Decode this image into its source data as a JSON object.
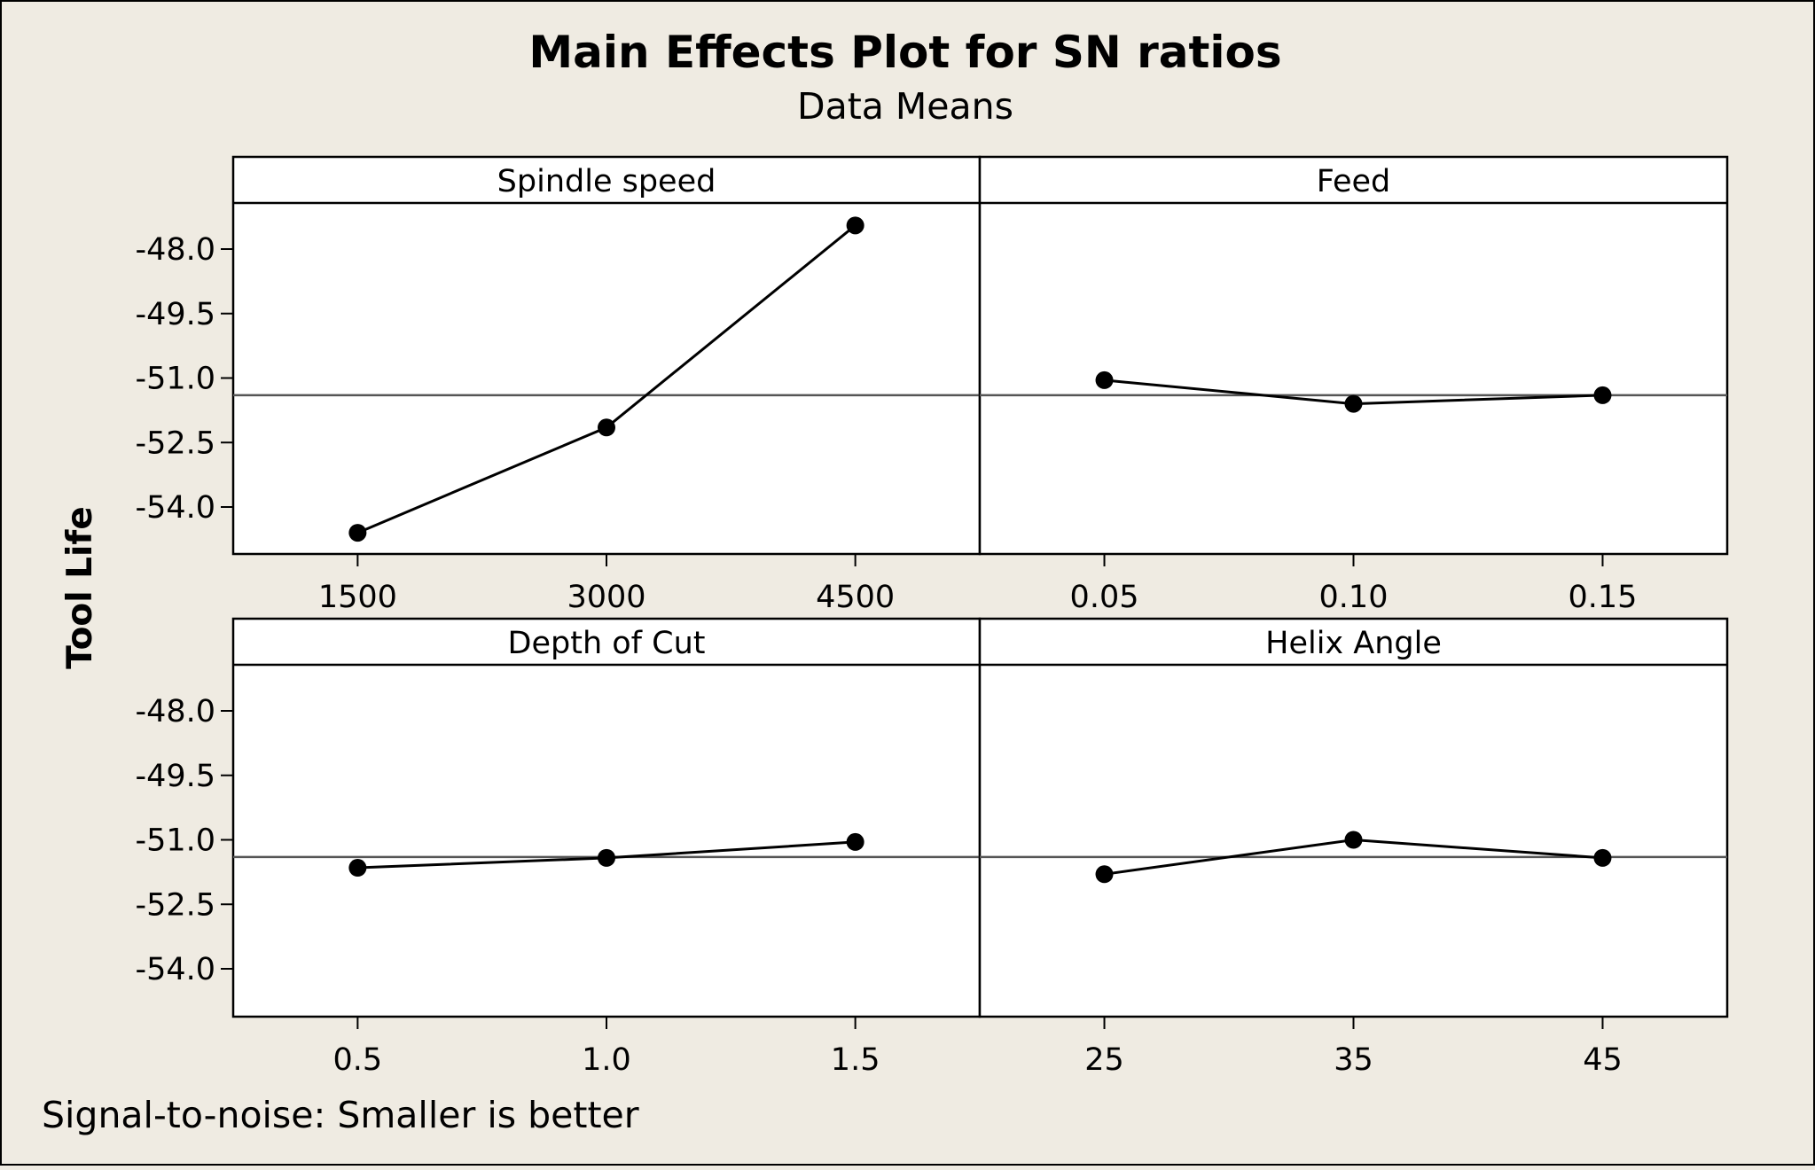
{
  "chart_data": {
    "type": "line",
    "title": "Main Effects Plot for SN ratios",
    "subtitle": "Data Means",
    "ylabel": "Tool Life",
    "ylim": [
      -55.0,
      -46.9
    ],
    "yticks": [
      "-48.0",
      "-49.5",
      "-51.0",
      "-52.5",
      "-54.0"
    ],
    "yticks_values": [
      -48.0,
      -49.5,
      -51.0,
      -52.5,
      -54.0
    ],
    "reference_line": -51.4,
    "footer": "Signal-to-noise: Smaller is better",
    "panels": [
      {
        "factor": "Spindle speed",
        "levels": [
          "1500",
          "3000",
          "4500"
        ],
        "values": [
          -54.6,
          -52.15,
          -47.45
        ]
      },
      {
        "factor": "Feed",
        "levels": [
          "0.05",
          "0.10",
          "0.15"
        ],
        "values": [
          -51.05,
          -51.6,
          -51.4
        ]
      },
      {
        "factor": "Depth of Cut",
        "levels": [
          "0.5",
          "1.0",
          "1.5"
        ],
        "values": [
          -51.65,
          -51.42,
          -51.05
        ]
      },
      {
        "factor": "Helix Angle",
        "levels": [
          "25",
          "35",
          "45"
        ],
        "values": [
          -51.8,
          -51.0,
          -51.42
        ]
      }
    ]
  },
  "colors": {
    "background": "#efebe2",
    "panel": "#ffffff",
    "line": "#000000",
    "reference": "#555555"
  }
}
